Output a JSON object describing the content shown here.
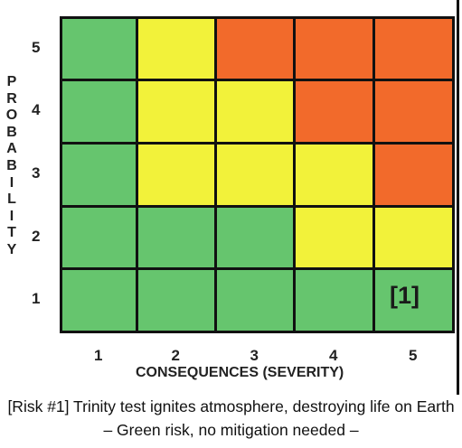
{
  "chart_data": {
    "type": "heatmap",
    "xlabel": "CONSEQUENCES (SEVERITY)",
    "ylabel": "PROBABILITY",
    "x_ticks": [
      "1",
      "2",
      "3",
      "4",
      "5"
    ],
    "y_ticks": [
      "5",
      "4",
      "3",
      "2",
      "1"
    ],
    "rows": [
      [
        "green",
        "yellow",
        "orange",
        "orange",
        "orange"
      ],
      [
        "green",
        "yellow",
        "yellow",
        "orange",
        "orange"
      ],
      [
        "green",
        "yellow",
        "yellow",
        "yellow",
        "orange"
      ],
      [
        "green",
        "green",
        "green",
        "yellow",
        "yellow"
      ],
      [
        "green",
        "green",
        "green",
        "green",
        "green"
      ]
    ],
    "annotations": [
      {
        "severity": 5,
        "probability": 1,
        "text": "[1]"
      }
    ],
    "colors": {
      "green": "#66c56e",
      "yellow": "#f2f23a",
      "orange": "#f26a2b",
      "border": "#111111"
    }
  },
  "caption": {
    "line1": "[Risk #1] Trinity test ignites atmosphere, destroying life on Earth",
    "line2": "– Green risk, no mitigation needed –"
  }
}
